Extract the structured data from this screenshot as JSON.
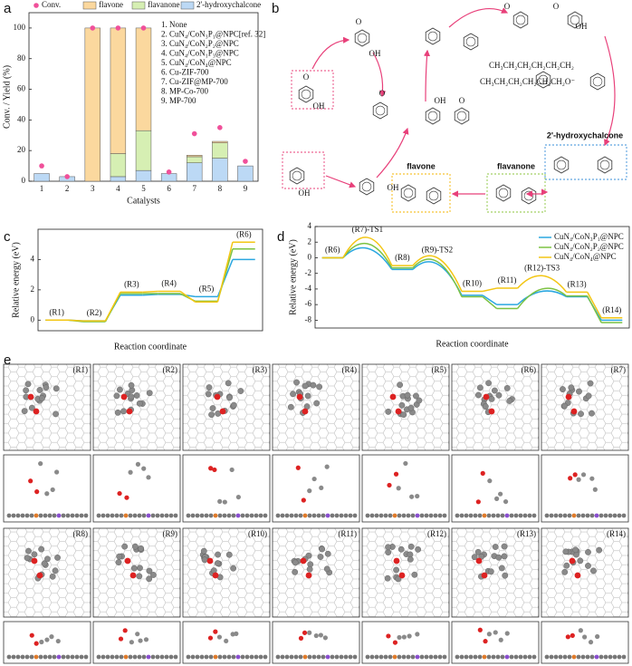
{
  "chart_data": [
    {
      "type": "bar",
      "panel": "a",
      "xlabel": "Catalysts",
      "ylabel": "Conv. / Yield (%)",
      "categories": [
        "1",
        "2",
        "3",
        "4",
        "5",
        "6",
        "7",
        "8",
        "9"
      ],
      "series": [
        {
          "name": "flavone",
          "color": "#fbd89e",
          "values": [
            0,
            0,
            100,
            82,
            67,
            0,
            1,
            1,
            0
          ]
        },
        {
          "name": "flavanone",
          "color": "#d6efb3",
          "values": [
            0,
            0,
            0,
            15,
            26,
            0,
            4,
            10,
            0
          ]
        },
        {
          "name": "2'-hydroxychalcone",
          "color": "#bcd9f5",
          "values": [
            5,
            3,
            0,
            3,
            7,
            5,
            12,
            15,
            10
          ]
        }
      ],
      "points": {
        "name": "Conv.",
        "color": "#f0509a",
        "values": [
          10,
          3,
          100,
          100,
          100,
          6,
          31,
          35,
          13
        ]
      },
      "catalysts": [
        "1. None",
        "2. CuN₄/CoN₃P₁@NPC[ref. 32]",
        "3. CuN₄/CoN₂P₂@NPC",
        "4. CuN₄/CoN₁P₃@NPC",
        "5. CuN₄/CoN₄@NPC",
        "6. Cu-ZIF-700",
        "7. Cu-ZIF@MP-700",
        "8. MP-Co-700",
        "9. MP-700"
      ],
      "ylim": [
        0,
        110
      ],
      "yticks": [
        0,
        20,
        40,
        60,
        80,
        100
      ]
    },
    {
      "type": "energy",
      "panel": "c",
      "xlabel": "Reaction coordinate",
      "ylabel": "Relative energy (eV)",
      "categories": [
        "(R1)",
        "(R2)",
        "(R3)",
        "(R4)",
        "(R5)",
        "(R6)"
      ],
      "series": [
        {
          "color": "#2aa7e0",
          "values": [
            0,
            -0.05,
            1.65,
            1.7,
            1.55,
            4.0
          ]
        },
        {
          "color": "#7cc242",
          "values": [
            0,
            -0.1,
            1.75,
            1.75,
            1.25,
            4.7
          ]
        },
        {
          "color": "#f3c614",
          "values": [
            0,
            -0.05,
            1.85,
            1.9,
            1.2,
            5.15
          ]
        }
      ],
      "ylim": [
        -0.7,
        6
      ],
      "yticks": [
        0,
        2,
        4
      ]
    },
    {
      "type": "energy",
      "panel": "d",
      "xlabel": "Reaction coordinate",
      "ylabel": "Relative energy (eV)",
      "categories": [
        "(R6)",
        "(R7)-TS1",
        "(R8)",
        "(R9)-TS2",
        "(R10)",
        "(R11)",
        "(R12)-TS3",
        "(R13)",
        "(R14)"
      ],
      "series": [
        {
          "name": "CuN₄/CoN₃P₁@NPC",
          "color": "#2aa7e0",
          "values": [
            0,
            1.2,
            -1.5,
            -0.8,
            -4.8,
            -6.0,
            -4.3,
            -5.0,
            -8.0
          ]
        },
        {
          "name": "CuN₄/CoN₂P₂@NPC",
          "color": "#7cc242",
          "values": [
            0,
            1.8,
            -1.3,
            -0.5,
            -5.0,
            -6.5,
            -4.0,
            -4.9,
            -8.3
          ]
        },
        {
          "name": "CuN₄/CoN₄@NPC",
          "color": "#f3c614",
          "values": [
            0,
            2.6,
            -1.0,
            0.0,
            -4.3,
            -3.9,
            -2.3,
            -4.4,
            -7.7
          ]
        }
      ],
      "legend": "top-right",
      "ylim": [
        -9,
        4
      ],
      "yticks": [
        -8,
        -6,
        -4,
        -2,
        0,
        2,
        4
      ]
    }
  ],
  "scheme": {
    "panel": "b",
    "hydroxychalcone": "2'-hydroxychalcone",
    "flavanone": "flavanone",
    "flavone": "flavone",
    "chain1": "CH₃CH₂CH₂CH₂CH₂CH₂",
    "chain2": "CH₃CH₂CH₂CH₂CH₂CH₂O⁻",
    "atoms": [
      "O",
      "OH",
      "OH",
      "O",
      "OH",
      "O",
      "OH",
      "OH",
      "O",
      "O",
      "O",
      "OH"
    ]
  },
  "structures": {
    "panel": "e",
    "states": [
      "(R1)",
      "(R2)",
      "(R3)",
      "(R4)",
      "(R5)",
      "(R6)",
      "(R7)",
      "(R8)",
      "(R9)",
      "(R10)",
      "(R11)",
      "(R12)",
      "(R13)",
      "(R14)"
    ]
  }
}
